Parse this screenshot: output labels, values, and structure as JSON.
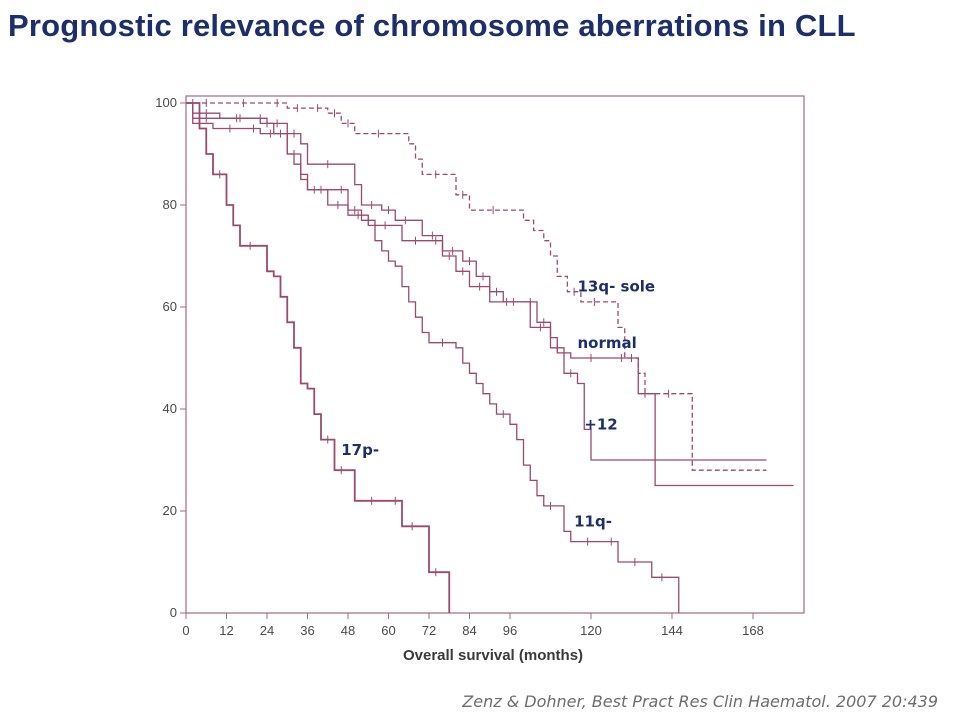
{
  "slide": {
    "title": "Prognostic relevance of chromosome aberrations in CLL",
    "citation_authors": "Zenz & Dohner",
    "citation_journal": ", Best Pract Res Clin Haematol. 2007 20:439"
  },
  "colors": {
    "title": "#1d2f6b",
    "curve": "#9b4a6e",
    "label": "#1d2f6b",
    "axis": "#a06a85"
  },
  "chart_data": {
    "type": "line",
    "subtype": "kaplan-meier",
    "title": "",
    "xlabel": "Overall survival (months)",
    "ylabel": "",
    "xlim": [
      0,
      180
    ],
    "ylim": [
      0,
      100
    ],
    "xticks": [
      0,
      12,
      24,
      36,
      48,
      60,
      72,
      84,
      96,
      120,
      144,
      168
    ],
    "yticks": [
      0,
      20,
      40,
      60,
      80,
      100
    ],
    "grid": false,
    "series": [
      {
        "name": "13q- sole",
        "style": "dashed",
        "label_at": [
          116,
          63
        ],
        "points": [
          [
            0,
            100
          ],
          [
            2,
            100
          ],
          [
            10,
            100
          ],
          [
            24,
            100
          ],
          [
            30,
            99
          ],
          [
            36,
            99
          ],
          [
            42,
            98
          ],
          [
            46,
            96
          ],
          [
            50,
            94
          ],
          [
            64,
            94
          ],
          [
            66,
            92
          ],
          [
            68,
            89
          ],
          [
            70,
            86
          ],
          [
            78,
            86
          ],
          [
            80,
            82
          ],
          [
            84,
            79
          ],
          [
            98,
            79
          ],
          [
            100,
            77
          ],
          [
            103,
            75
          ],
          [
            106,
            73
          ],
          [
            108,
            70
          ],
          [
            110,
            66
          ],
          [
            113,
            63
          ],
          [
            117,
            61
          ],
          [
            125,
            61
          ],
          [
            128,
            56
          ],
          [
            130,
            50
          ],
          [
            134,
            47
          ],
          [
            136,
            43
          ],
          [
            150,
            43
          ],
          [
            150,
            28
          ],
          [
            172,
            28
          ]
        ]
      },
      {
        "name": "normal",
        "style": "solid",
        "label_at": [
          116,
          52
        ],
        "points": [
          [
            0,
            100
          ],
          [
            2,
            97
          ],
          [
            10,
            97
          ],
          [
            20,
            97
          ],
          [
            24,
            96
          ],
          [
            30,
            94
          ],
          [
            34,
            92
          ],
          [
            36,
            88
          ],
          [
            48,
            88
          ],
          [
            50,
            84
          ],
          [
            52,
            80
          ],
          [
            58,
            79
          ],
          [
            62,
            77
          ],
          [
            68,
            77
          ],
          [
            70,
            74
          ],
          [
            76,
            71
          ],
          [
            82,
            69
          ],
          [
            86,
            66
          ],
          [
            90,
            63
          ],
          [
            94,
            61
          ],
          [
            100,
            61
          ],
          [
            104,
            57
          ],
          [
            108,
            54
          ],
          [
            110,
            51
          ],
          [
            114,
            50
          ],
          [
            126,
            50
          ],
          [
            132,
            50
          ],
          [
            134,
            43
          ],
          [
            138,
            43
          ],
          [
            139,
            25
          ],
          [
            180,
            25
          ]
        ]
      },
      {
        "name": "+12",
        "style": "solid",
        "label_at": [
          118,
          36
        ],
        "points": [
          [
            0,
            100
          ],
          [
            2,
            96
          ],
          [
            6,
            96
          ],
          [
            8,
            95
          ],
          [
            18,
            95
          ],
          [
            22,
            94
          ],
          [
            28,
            94
          ],
          [
            30,
            90
          ],
          [
            32,
            88
          ],
          [
            34,
            85
          ],
          [
            36,
            83
          ],
          [
            44,
            83
          ],
          [
            48,
            79
          ],
          [
            52,
            77
          ],
          [
            56,
            76
          ],
          [
            62,
            76
          ],
          [
            64,
            73
          ],
          [
            72,
            73
          ],
          [
            76,
            70
          ],
          [
            80,
            67
          ],
          [
            84,
            64
          ],
          [
            90,
            61
          ],
          [
            100,
            61
          ],
          [
            102,
            56
          ],
          [
            108,
            52
          ],
          [
            112,
            47
          ],
          [
            116,
            45
          ],
          [
            118,
            36
          ],
          [
            120,
            30
          ],
          [
            172,
            30
          ]
        ]
      },
      {
        "name": "11q-",
        "style": "solid",
        "label_at": [
          115,
          17
        ],
        "points": [
          [
            0,
            100
          ],
          [
            2,
            98
          ],
          [
            10,
            97
          ],
          [
            22,
            96
          ],
          [
            26,
            94
          ],
          [
            30,
            90
          ],
          [
            34,
            86
          ],
          [
            36,
            83
          ],
          [
            40,
            83
          ],
          [
            42,
            80
          ],
          [
            48,
            78
          ],
          [
            54,
            76
          ],
          [
            56,
            73
          ],
          [
            58,
            71
          ],
          [
            60,
            69
          ],
          [
            62,
            68
          ],
          [
            64,
            64
          ],
          [
            66,
            61
          ],
          [
            68,
            58
          ],
          [
            70,
            55
          ],
          [
            72,
            53
          ],
          [
            80,
            52
          ],
          [
            82,
            49
          ],
          [
            84,
            47
          ],
          [
            86,
            45
          ],
          [
            88,
            43
          ],
          [
            90,
            41
          ],
          [
            92,
            39
          ],
          [
            96,
            37
          ],
          [
            98,
            34
          ],
          [
            100,
            29
          ],
          [
            102,
            26
          ],
          [
            104,
            23
          ],
          [
            106,
            21
          ],
          [
            110,
            21
          ],
          [
            112,
            16
          ],
          [
            114,
            14
          ],
          [
            124,
            14
          ],
          [
            128,
            10
          ],
          [
            138,
            7
          ],
          [
            144,
            7
          ],
          [
            146,
            0
          ]
        ]
      },
      {
        "name": "17p-",
        "style": "solid",
        "label_at": [
          46,
          31
        ],
        "points": [
          [
            0,
            100
          ],
          [
            4,
            95
          ],
          [
            6,
            90
          ],
          [
            8,
            86
          ],
          [
            12,
            80
          ],
          [
            14,
            76
          ],
          [
            16,
            72
          ],
          [
            22,
            72
          ],
          [
            24,
            67
          ],
          [
            26,
            66
          ],
          [
            28,
            62
          ],
          [
            30,
            57
          ],
          [
            32,
            52
          ],
          [
            34,
            45
          ],
          [
            36,
            44
          ],
          [
            38,
            39
          ],
          [
            40,
            34
          ],
          [
            44,
            28
          ],
          [
            48,
            28
          ],
          [
            50,
            22
          ],
          [
            60,
            22
          ],
          [
            64,
            17
          ],
          [
            70,
            17
          ],
          [
            72,
            8
          ],
          [
            76,
            8
          ],
          [
            78,
            3
          ],
          [
            78,
            0
          ]
        ]
      }
    ]
  }
}
